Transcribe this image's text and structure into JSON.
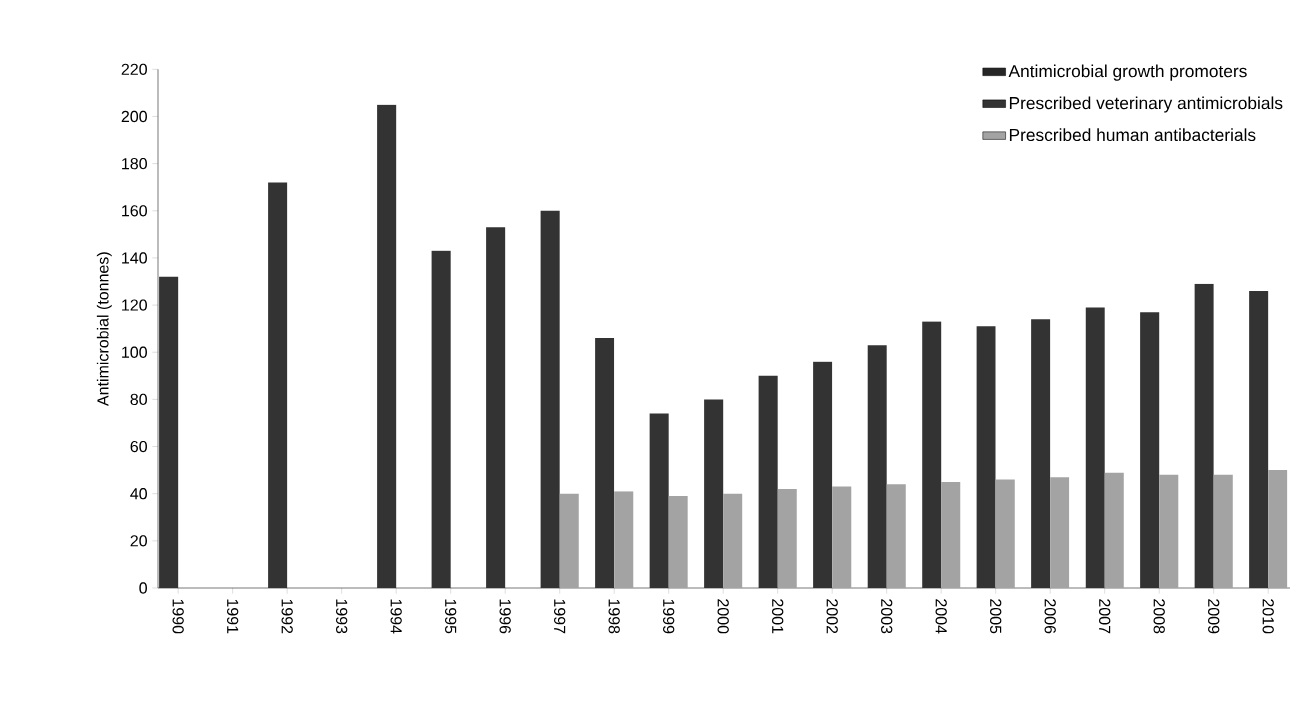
{
  "chart_data": {
    "type": "bar",
    "ylabel": "Antimicrobial (tonnes)",
    "categories": [
      "1990",
      "1991",
      "1992",
      "1993",
      "1994",
      "1995",
      "1996",
      "1997",
      "1998",
      "1999",
      "2000",
      "2001",
      "2002",
      "2003",
      "2004",
      "2005",
      "2006",
      "2007",
      "2008",
      "2009",
      "2010"
    ],
    "series": [
      {
        "name": "Antimicrobial growth promoters",
        "color": "#262626",
        "values": [
          null,
          null,
          null,
          null,
          null,
          null,
          null,
          null,
          null,
          null,
          null,
          null,
          null,
          null,
          null,
          null,
          null,
          null,
          null,
          null,
          null
        ]
      },
      {
        "name": "Prescribed veterinary antimicrobials",
        "color": "#333333",
        "values": [
          132,
          null,
          172,
          null,
          205,
          143,
          153,
          160,
          106,
          74,
          80,
          90,
          96,
          103,
          113,
          111,
          114,
          119,
          117,
          129,
          126
        ]
      },
      {
        "name": "Prescribed human antibacterials",
        "color": "#a3a3a3",
        "values": [
          null,
          null,
          null,
          null,
          null,
          null,
          null,
          40,
          41,
          39,
          40,
          42,
          43,
          44,
          45,
          46,
          47,
          49,
          48,
          48,
          50
        ]
      }
    ],
    "ylim": [
      0,
      220
    ],
    "yticks": [
      0,
      20,
      40,
      60,
      80,
      100,
      120,
      140,
      160,
      180,
      200,
      220
    ],
    "grid": false,
    "legend": "top right"
  }
}
